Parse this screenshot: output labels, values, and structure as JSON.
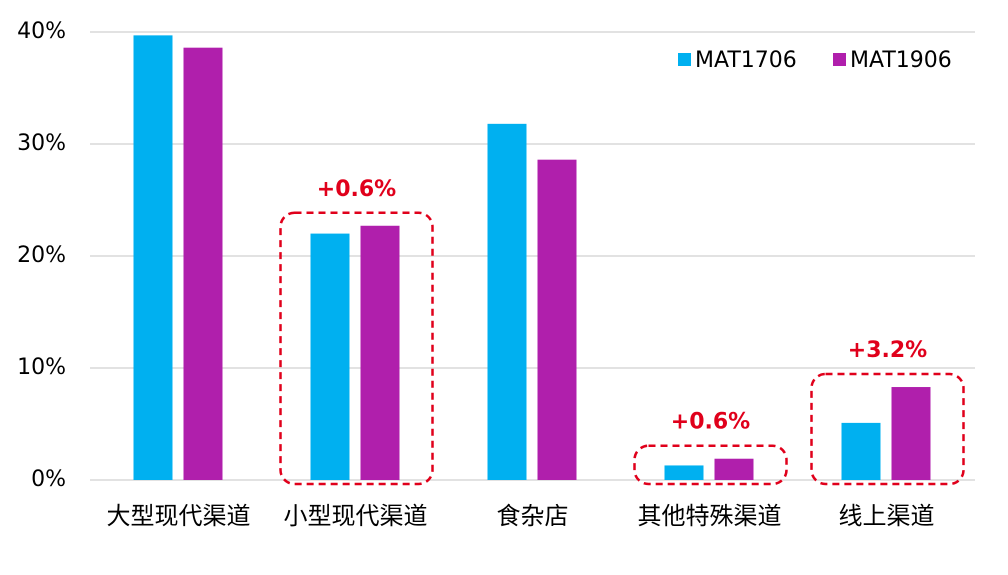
{
  "chart_data": {
    "type": "bar",
    "categories": [
      "大型现代渠道",
      "小型现代渠道",
      "食杂店",
      "其他特殊渠道",
      "线上渠道"
    ],
    "series": [
      {
        "name": "MAT1706",
        "color": "#00b0f0",
        "values": [
          39.7,
          22.0,
          31.8,
          1.3,
          5.1
        ]
      },
      {
        "name": "MAT1906",
        "color": "#b01fac",
        "values": [
          38.6,
          22.7,
          28.6,
          1.9,
          8.3
        ]
      }
    ],
    "ylim": [
      0,
      40
    ],
    "yticks": [
      {
        "value": 0,
        "label": "0%"
      },
      {
        "value": 10,
        "label": "10%"
      },
      {
        "value": 20,
        "label": "20%"
      },
      {
        "value": 30,
        "label": "30%"
      },
      {
        "value": 40,
        "label": "40%"
      }
    ],
    "grid": true,
    "legend": "upper right",
    "annotations": [
      {
        "category": "小型现代渠道",
        "text": "+0.6%",
        "color": "#e0001b"
      },
      {
        "category": "其他特殊渠道",
        "text": "+0.6%",
        "color": "#e0001b"
      },
      {
        "category": "线上渠道",
        "text": "+3.2%",
        "color": "#e0001b"
      }
    ]
  }
}
